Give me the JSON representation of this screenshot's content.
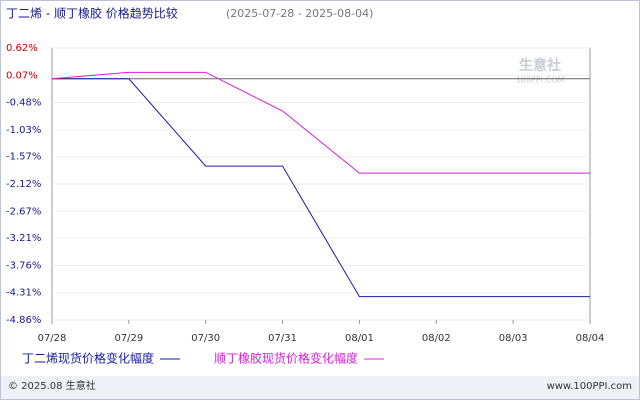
{
  "chart_data": {
    "type": "line",
    "title": "丁二烯 - 顺丁橡胶 价格趋势比较",
    "subtitle": "(2025-07-28 - 2025-08-04)",
    "categories": [
      "07/28",
      "07/29",
      "07/30",
      "07/31",
      "08/01",
      "08/02",
      "08/03",
      "08/04"
    ],
    "series": [
      {
        "name": "丁二烯现货价格变化幅度",
        "color": "#1a1aa6",
        "values": [
          0,
          0,
          -1.76,
          -1.76,
          -4.39,
          -4.39,
          -4.39,
          -4.39
        ]
      },
      {
        "name": "顺丁橡胶现货价格变化幅度",
        "color": "#d61fd6",
        "values": [
          0,
          0.13,
          0.13,
          -0.65,
          -1.9,
          -1.9,
          -1.9,
          -1.9
        ]
      }
    ],
    "ylim": [
      -4.86,
      0.62
    ],
    "yticks": [
      {
        "value": 0.62,
        "label": "0.62%"
      },
      {
        "value": 0.07,
        "label": "0.07%"
      },
      {
        "value": -0.48,
        "label": "-0.48%"
      },
      {
        "value": -1.03,
        "label": "-1.03%"
      },
      {
        "value": -1.57,
        "label": "-1.57%"
      },
      {
        "value": -2.12,
        "label": "-2.12%"
      },
      {
        "value": -2.67,
        "label": "-2.67%"
      },
      {
        "value": -3.21,
        "label": "-3.21%"
      },
      {
        "value": -3.76,
        "label": "-3.76%"
      },
      {
        "value": -4.31,
        "label": "-4.31%"
      },
      {
        "value": -4.86,
        "label": "-4.86%"
      }
    ],
    "watermark": [
      "生意社",
      "100PPI.COM"
    ],
    "footer": {
      "left": "© 2025.08 生意社",
      "right": "www.100PPI.com"
    }
  }
}
